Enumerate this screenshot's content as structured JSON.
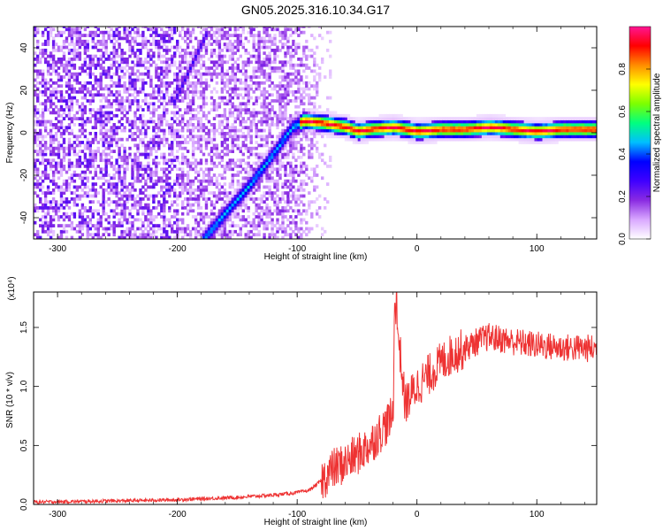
{
  "figure": {
    "title": "GN05.2025.316.10.34.G17"
  },
  "chart_data": [
    {
      "type": "heatmap",
      "xlabel": "Height of straight line (km)",
      "ylabel": "Frequency (Hz)",
      "xlim": [
        -320,
        150
      ],
      "ylim": [
        -50,
        50
      ],
      "xticks": [
        -300,
        -200,
        -100,
        0,
        100
      ],
      "yticks": [
        -40,
        -20,
        0,
        20,
        40
      ],
      "grid": false,
      "colorbar": {
        "label": "Normalized spectral amplitude",
        "range": [
          0,
          1
        ],
        "ticks": [
          "0.0",
          "0.2",
          "0.4",
          "0.6",
          "0.8"
        ],
        "colors": [
          "#ffffff",
          "#d9a8ff",
          "#8a2be2",
          "#3f00ff",
          "#0000ff",
          "#00bfff",
          "#00ff80",
          "#7cff00",
          "#ffff00",
          "#ff8c00",
          "#ff0000",
          "#ff1493"
        ]
      },
      "ridge": {
        "description_points_x": [
          -175,
          -160,
          -140,
          -120,
          -105,
          -95,
          -80,
          -70,
          -60,
          -50,
          -40,
          -20,
          0,
          20,
          40,
          60,
          80,
          100,
          120,
          150
        ],
        "description_points_y": [
          -48,
          -38,
          -25,
          -10,
          2,
          5,
          4,
          3,
          2,
          0,
          1,
          2,
          0,
          1,
          1,
          2,
          1,
          0,
          1,
          1
        ]
      },
      "secondary_ridge": {
        "x": [
          -205,
          -195,
          -185,
          -180,
          -175
        ],
        "y": [
          12,
          25,
          38,
          44,
          48
        ]
      }
    },
    {
      "type": "line",
      "xlabel": "Height of straight line (km)",
      "ylabel": "SNR (10 * v/v)",
      "ylabel_exponent": "(x10⁴)",
      "xlim": [
        -320,
        150
      ],
      "ylim": [
        0,
        1.8
      ],
      "xticks": [
        -300,
        -200,
        -100,
        0,
        100
      ],
      "yticks": [
        "0.0",
        "0.5",
        "1.0",
        "1.5"
      ],
      "grid": false,
      "series": [
        {
          "color": "#ee3333",
          "x": [
            -320,
            -250,
            -200,
            -150,
            -120,
            -100,
            -90,
            -80,
            -70,
            -60,
            -50,
            -40,
            -30,
            -20,
            -18,
            -10,
            0,
            10,
            20,
            30,
            40,
            50,
            60,
            80,
            100,
            120,
            150
          ],
          "y": [
            0.02,
            0.03,
            0.04,
            0.06,
            0.08,
            0.1,
            0.12,
            0.2,
            0.3,
            0.35,
            0.42,
            0.5,
            0.62,
            0.75,
            1.7,
            0.85,
            1.0,
            1.1,
            1.2,
            1.28,
            1.32,
            1.38,
            1.42,
            1.38,
            1.35,
            1.33,
            1.32
          ]
        }
      ]
    }
  ]
}
